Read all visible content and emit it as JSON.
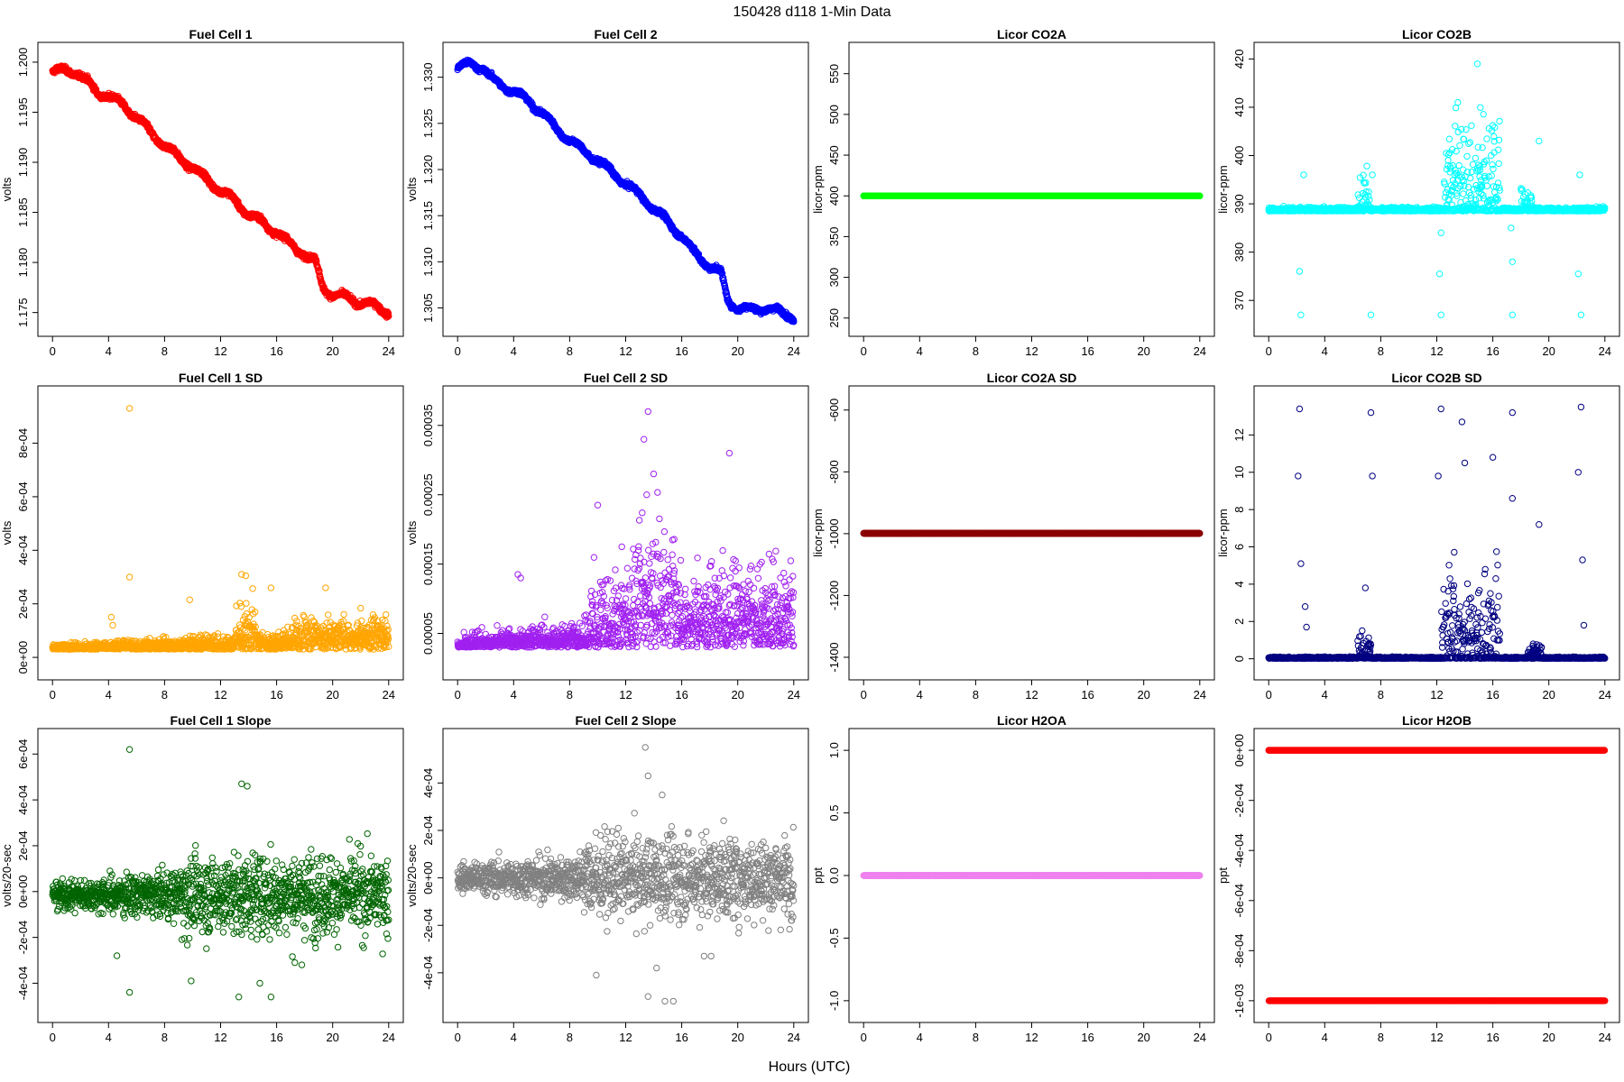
{
  "figure": {
    "title": "150428   d118   1-Min Data",
    "xlabel": "Hours (UTC)"
  },
  "chart_data": [
    {
      "type": "scatter",
      "title": "Fuel Cell 1",
      "xlabel": "",
      "ylabel": "volts",
      "color": "#ff0000",
      "xlim": [
        0,
        24
      ],
      "ylim": [
        1.1738,
        1.2008
      ],
      "xticks": [
        "0",
        "4",
        "8",
        "12",
        "16",
        "20",
        "24"
      ],
      "yticks": [
        "1.175",
        "1.180",
        "1.185",
        "1.190",
        "1.195",
        "1.200"
      ],
      "series": [
        {
          "pattern": "trend",
          "knots": [
            [
              0,
              1.199
            ],
            [
              1.0,
              1.1992
            ],
            [
              1.7,
              1.199
            ],
            [
              2.5,
              1.198
            ],
            [
              3.2,
              1.197
            ],
            [
              4.0,
              1.1966
            ],
            [
              5.0,
              1.1958
            ],
            [
              6.0,
              1.1945
            ],
            [
              7.0,
              1.193
            ],
            [
              8.0,
              1.1917
            ],
            [
              9.0,
              1.1905
            ],
            [
              10.0,
              1.1895
            ],
            [
              11.0,
              1.1883
            ],
            [
              12.0,
              1.1872
            ],
            [
              13.0,
              1.1862
            ],
            [
              14.0,
              1.1848
            ],
            [
              15.0,
              1.184
            ],
            [
              16.0,
              1.183
            ],
            [
              17.0,
              1.1818
            ],
            [
              18.0,
              1.1808
            ],
            [
              18.8,
              1.18
            ],
            [
              19.3,
              1.1775
            ],
            [
              20.0,
              1.1768
            ],
            [
              21.0,
              1.1765
            ],
            [
              22.0,
              1.176
            ],
            [
              23.0,
              1.1757
            ],
            [
              24.0,
              1.175
            ]
          ],
          "noise": 0.0003,
          "n": 1440
        }
      ]
    },
    {
      "type": "scatter",
      "title": "Fuel Cell 2",
      "xlabel": "",
      "ylabel": "volts",
      "color": "#0000ff",
      "xlim": [
        0,
        24
      ],
      "ylim": [
        1.3032,
        1.3325
      ],
      "xticks": [
        "0",
        "4",
        "8",
        "12",
        "16",
        "20",
        "24"
      ],
      "yticks": [
        "1.305",
        "1.310",
        "1.315",
        "1.320",
        "1.325",
        "1.330"
      ],
      "series": [
        {
          "pattern": "trend",
          "knots": [
            [
              0,
              1.331
            ],
            [
              1.0,
              1.3315
            ],
            [
              1.8,
              1.331
            ],
            [
              2.5,
              1.3297
            ],
            [
              3.3,
              1.329
            ],
            [
              4.0,
              1.3285
            ],
            [
              5.0,
              1.3275
            ],
            [
              6.0,
              1.3262
            ],
            [
              7.0,
              1.3245
            ],
            [
              8.0,
              1.3232
            ],
            [
              9.0,
              1.322
            ],
            [
              10.0,
              1.321
            ],
            [
              11.0,
              1.3197
            ],
            [
              12.0,
              1.3185
            ],
            [
              13.0,
              1.3172
            ],
            [
              14.0,
              1.3158
            ],
            [
              15.0,
              1.3143
            ],
            [
              16.0,
              1.3128
            ],
            [
              17.0,
              1.3108
            ],
            [
              18.0,
              1.3095
            ],
            [
              18.8,
              1.3088
            ],
            [
              19.3,
              1.3058
            ],
            [
              20.0,
              1.305
            ],
            [
              21.0,
              1.3048
            ],
            [
              22.0,
              1.305
            ],
            [
              23.0,
              1.3046
            ],
            [
              24.0,
              1.304
            ]
          ],
          "noise": 0.0003,
          "n": 1440
        }
      ]
    },
    {
      "type": "scatter",
      "title": "Licor CO2A",
      "xlabel": "",
      "ylabel": "licor-ppm",
      "color": "#00ff00",
      "xlim": [
        0,
        24
      ],
      "ylim": [
        242,
        574
      ],
      "xticks": [
        "0",
        "4",
        "8",
        "12",
        "16",
        "20",
        "24"
      ],
      "yticks": [
        "250",
        "300",
        "350",
        "400",
        "450",
        "500",
        "550"
      ],
      "series": [
        {
          "pattern": "flat",
          "value": 400,
          "n": 1440
        }
      ]
    },
    {
      "type": "scatter",
      "title": "Licor CO2B",
      "xlabel": "",
      "ylabel": "licor-ppm",
      "color": "#00ffff",
      "xlim": [
        0,
        24
      ],
      "ylim": [
        365,
        421
      ],
      "xticks": [
        "0",
        "4",
        "8",
        "12",
        "16",
        "20",
        "24"
      ],
      "yticks": [
        "370",
        "380",
        "390",
        "400",
        "410",
        "420"
      ],
      "series": [
        {
          "pattern": "baseline-noise",
          "base": 388.5,
          "noise": 0.5,
          "bursts": [
            [
              6.3,
              7.2,
              5
            ],
            [
              12.5,
              16.5,
              12
            ],
            [
              18.0,
              18.8,
              3
            ]
          ],
          "outliers": [
            [
              2.3,
              367
            ],
            [
              7.3,
              367
            ],
            [
              12.3,
              367
            ],
            [
              17.4,
              367
            ],
            [
              22.3,
              367
            ],
            [
              2.2,
              376
            ],
            [
              12.2,
              375.5
            ],
            [
              22.1,
              375.5
            ],
            [
              17.4,
              378
            ],
            [
              14.9,
              419
            ],
            [
              13.5,
              411
            ],
            [
              19.3,
              403
            ],
            [
              2.5,
              396
            ],
            [
              7.4,
              396
            ],
            [
              12.3,
              384
            ],
            [
              17.3,
              385
            ],
            [
              22.2,
              396
            ]
          ],
          "n": 1440
        }
      ]
    },
    {
      "type": "scatter",
      "title": "Fuel Cell 1 SD",
      "xlabel": "",
      "ylabel": "volts",
      "color": "#ffa500",
      "xlim": [
        0,
        24
      ],
      "ylim": [
        -4e-05,
        0.00097
      ],
      "xticks": [
        "0",
        "4",
        "8",
        "12",
        "16",
        "20",
        "24"
      ],
      "yticks": [
        "0e+00",
        "2e-04",
        "4e-04",
        "6e-04",
        "8e-04"
      ],
      "series": [
        {
          "pattern": "baseline-noise",
          "base": 3e-05,
          "noise": 1.2e-05,
          "growth": 4.5e-05,
          "bursts": [
            [
              13.0,
              14.5,
              0.0001
            ],
            [
              17.0,
              24.0,
              5e-05
            ]
          ],
          "outliers": [
            [
              5.5,
              0.00093
            ],
            [
              5.5,
              0.0003
            ],
            [
              13.5,
              0.00031
            ],
            [
              13.8,
              0.000305
            ],
            [
              15.6,
              0.00026
            ],
            [
              19.5,
              0.00026
            ],
            [
              9.8,
              0.000215
            ],
            [
              4.2,
              0.00015
            ],
            [
              4.3,
              0.00012
            ]
          ],
          "n": 1440
        }
      ]
    },
    {
      "type": "scatter",
      "title": "Fuel Cell 2 SD",
      "xlabel": "",
      "ylabel": "volts",
      "color": "#a020f0",
      "xlim": [
        0,
        24
      ],
      "ylim": [
        0.0,
        0.00039
      ],
      "xticks": [
        "0",
        "4",
        "8",
        "12",
        "16",
        "20",
        "24"
      ],
      "yticks": [
        "0.00005",
        "0.00015",
        "0.00025",
        "0.00035"
      ],
      "series": [
        {
          "pattern": "baseline-noise",
          "base": 3e-05,
          "noise": 1e-05,
          "growth": 4e-05,
          "bursts": [
            [
              9.5,
              24.0,
              6e-05
            ],
            [
              12.5,
              15.5,
              8e-05
            ]
          ],
          "outliers": [
            [
              13.6,
              0.00037
            ],
            [
              13.3,
              0.00033
            ],
            [
              19.4,
              0.00031
            ],
            [
              14.0,
              0.00028
            ],
            [
              13.5,
              0.00025
            ],
            [
              4.3,
              0.000135
            ],
            [
              4.5,
              0.00013
            ],
            [
              10.0,
              0.000235
            ]
          ],
          "n": 1440
        }
      ]
    },
    {
      "type": "scatter",
      "title": "Licor CO2A SD",
      "xlabel": "",
      "ylabel": "licor-ppm",
      "color": "#8b0000",
      "xlim": [
        0,
        24
      ],
      "ylim": [
        -1435,
        -560
      ],
      "xticks": [
        "0",
        "4",
        "8",
        "12",
        "16",
        "20",
        "24"
      ],
      "yticks": [
        "-1400",
        "-1200",
        "-1000",
        "-800",
        "-600"
      ],
      "series": [
        {
          "pattern": "flat",
          "value": -999,
          "n": 1440
        }
      ]
    },
    {
      "type": "scatter",
      "title": "Licor CO2B SD",
      "xlabel": "",
      "ylabel": "licor-ppm",
      "color": "#000080",
      "xlim": [
        0,
        24
      ],
      "ylim": [
        -0.5,
        14.0
      ],
      "xticks": [
        "0",
        "4",
        "8",
        "12",
        "16",
        "20",
        "24"
      ],
      "yticks": [
        "0",
        "2",
        "4",
        "6",
        "8",
        "10",
        "12"
      ],
      "series": [
        {
          "pattern": "baseline-noise",
          "base": 0.02,
          "noise": 0.05,
          "bursts": [
            [
              6.3,
              7.3,
              1.0
            ],
            [
              12.3,
              16.5,
              3.0
            ],
            [
              18.5,
              19.5,
              0.6
            ]
          ],
          "outliers": [
            [
              2.2,
              13.4
            ],
            [
              7.3,
              13.2
            ],
            [
              12.3,
              13.4
            ],
            [
              17.4,
              13.2
            ],
            [
              22.3,
              13.5
            ],
            [
              13.8,
              12.7
            ],
            [
              2.1,
              9.8
            ],
            [
              7.4,
              9.8
            ],
            [
              12.1,
              9.8
            ],
            [
              17.4,
              8.6
            ],
            [
              22.1,
              10.0
            ],
            [
              16.0,
              10.8
            ],
            [
              19.3,
              7.2
            ],
            [
              2.3,
              5.1
            ],
            [
              22.4,
              5.3
            ],
            [
              2.6,
              2.8
            ],
            [
              2.7,
              1.7
            ],
            [
              22.5,
              1.8
            ],
            [
              6.9,
              3.8
            ],
            [
              14.0,
              10.5
            ]
          ],
          "n": 1440
        }
      ]
    },
    {
      "type": "scatter",
      "title": "Fuel Cell 1 Slope",
      "xlabel": "",
      "ylabel": "volts/20-sec",
      "color": "#006400",
      "xlim": [
        0,
        24
      ],
      "ylim": [
        -0.00052,
        0.00066
      ],
      "xticks": [
        "0",
        "4",
        "8",
        "12",
        "16",
        "20",
        "24"
      ],
      "yticks": [
        "-4e-04",
        "-2e-04",
        "0e+00",
        "2e-04",
        "4e-04",
        "6e-04"
      ],
      "series": [
        {
          "pattern": "symmetric-noise",
          "base": -1.5e-05,
          "noise": 4e-05,
          "growth": 8e-05,
          "outliers": [
            [
              5.5,
              0.00062
            ],
            [
              13.5,
              0.00047
            ],
            [
              13.9,
              0.00046
            ],
            [
              5.5,
              -0.00044
            ],
            [
              4.6,
              -0.00028
            ],
            [
              9.9,
              -0.00039
            ],
            [
              13.3,
              -0.00046
            ],
            [
              15.6,
              -0.00046
            ],
            [
              14.8,
              -0.0004
            ],
            [
              17.3,
              -0.00031
            ],
            [
              17.8,
              -0.00032
            ]
          ],
          "n": 1440
        }
      ]
    },
    {
      "type": "scatter",
      "title": "Fuel Cell 2 Slope",
      "xlabel": "",
      "ylabel": "volts/20-sec",
      "color": "#808080",
      "xlim": [
        0,
        24
      ],
      "ylim": [
        -0.00056,
        0.00058
      ],
      "xticks": [
        "0",
        "4",
        "8",
        "12",
        "16",
        "20",
        "24"
      ],
      "yticks": [
        "-4e-04",
        "-2e-04",
        "0e+00",
        "2e-04",
        "4e-04"
      ],
      "series": [
        {
          "pattern": "symmetric-noise",
          "base": 0.0,
          "noise": 4e-05,
          "growth": 8e-05,
          "outliers": [
            [
              13.4,
              0.00055
            ],
            [
              13.6,
              0.00043
            ],
            [
              14.6,
              0.00035
            ],
            [
              13.6,
              -0.0005
            ],
            [
              14.8,
              -0.00052
            ],
            [
              15.4,
              -0.00052
            ],
            [
              9.9,
              -0.00041
            ],
            [
              14.2,
              -0.00038
            ],
            [
              17.6,
              -0.00033
            ],
            [
              18.1,
              -0.00033
            ]
          ],
          "n": 1440
        }
      ]
    },
    {
      "type": "scatter",
      "title": "Licor H2OA",
      "xlabel": "",
      "ylabel": "ppt",
      "color": "#ee82ee",
      "xlim": [
        0,
        24
      ],
      "ylim": [
        -1.08,
        1.08
      ],
      "xticks": [
        "0",
        "4",
        "8",
        "12",
        "16",
        "20",
        "24"
      ],
      "yticks": [
        "-1.0",
        "-0.5",
        "0.0",
        "0.5",
        "1.0"
      ],
      "series": [
        {
          "pattern": "flat",
          "value": 0,
          "n": 1440
        }
      ]
    },
    {
      "type": "scatter",
      "title": "Licor H2OB",
      "xlabel": "",
      "ylabel": "ppt",
      "color": "#ff0000",
      "xlim": [
        0,
        24
      ],
      "ylim": [
        -0.00104,
        4e-05
      ],
      "xticks": [
        "0",
        "4",
        "8",
        "12",
        "16",
        "20",
        "24"
      ],
      "yticks": [
        "-1e-03",
        "-8e-04",
        "-6e-04",
        "-4e-04",
        "-2e-04",
        "0e+00"
      ],
      "series": [
        {
          "pattern": "two-level",
          "levels": [
            0,
            -0.001
          ],
          "n": 1440
        }
      ]
    }
  ]
}
